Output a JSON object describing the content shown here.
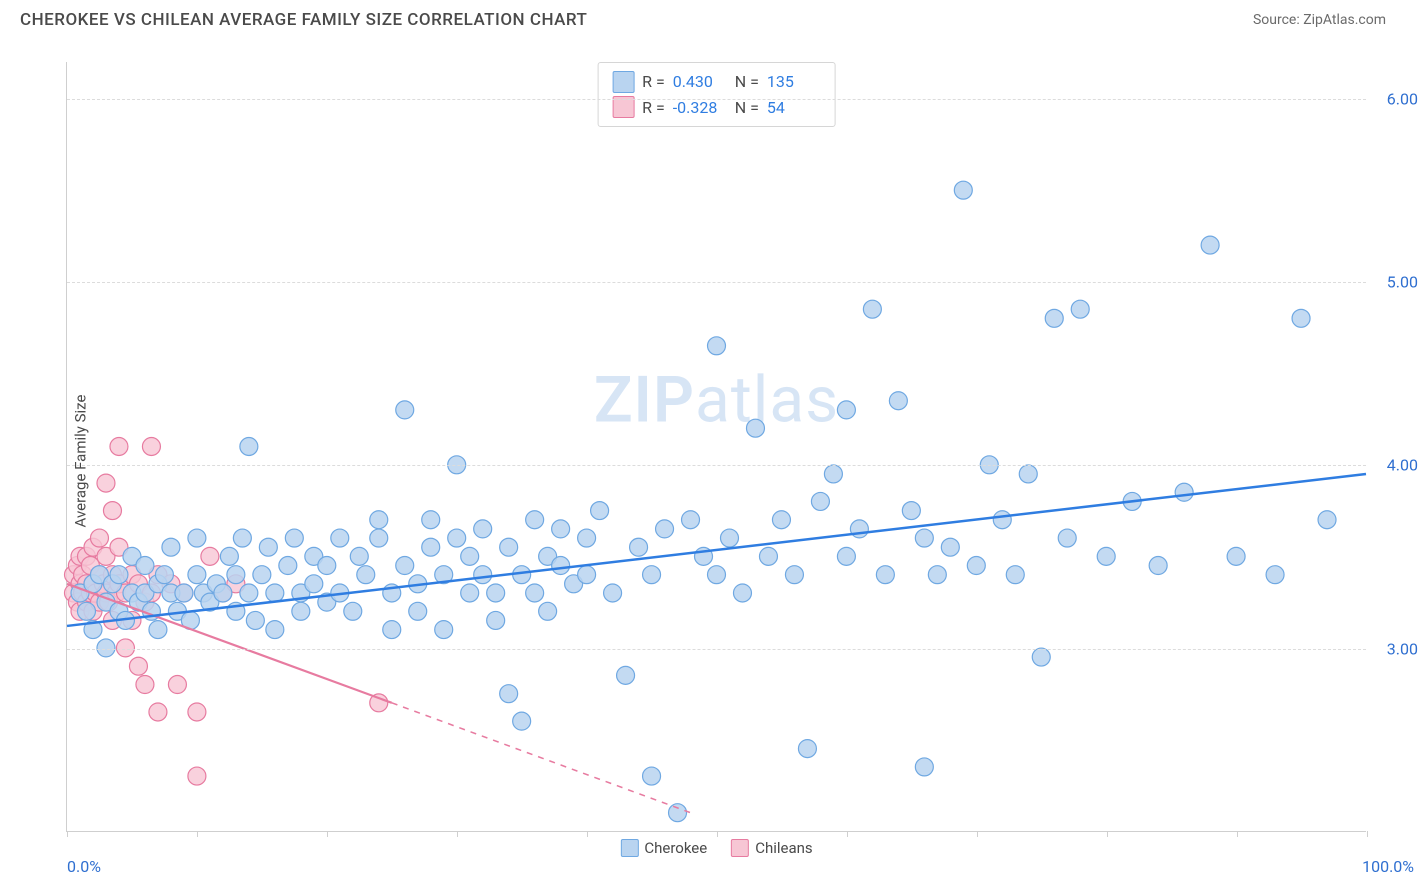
{
  "header": {
    "title": "CHEROKEE VS CHILEAN AVERAGE FAMILY SIZE CORRELATION CHART",
    "source": "Source: ZipAtlas.com"
  },
  "chart": {
    "type": "scatter",
    "y_axis_label": "Average Family Size",
    "background_color": "#ffffff",
    "grid_color": "#dcdcdc",
    "axis_color": "#cfcfcf",
    "watermark_text_bold": "ZIP",
    "watermark_text_rest": "atlas",
    "watermark_color": "#d7e5f5",
    "x_axis": {
      "min": 0,
      "max": 100,
      "left_label": "0.0%",
      "right_label": "100.0%",
      "label_color": "#2f6fd0",
      "tick_positions_pct": [
        0,
        10,
        20,
        30,
        40,
        50,
        60,
        70,
        80,
        90,
        100
      ]
    },
    "y_axis": {
      "min": 2.0,
      "max": 6.2,
      "ticks": [
        3.0,
        4.0,
        5.0,
        6.0
      ],
      "tick_labels": [
        "3.00",
        "4.00",
        "5.00",
        "6.00"
      ],
      "label_color": "#2f6fd0"
    },
    "stats_box": {
      "rows": [
        {
          "swatch": "blue",
          "r_label": "R =",
          "r_value": "0.430",
          "n_label": "N =",
          "n_value": "135"
        },
        {
          "swatch": "pink",
          "r_label": "R =",
          "r_value": "-0.328",
          "n_label": "N =",
          "n_value": "54"
        }
      ],
      "value_color": "#2f7de1"
    },
    "legend_bottom": [
      {
        "swatch": "blue",
        "label": "Cherokee"
      },
      {
        "swatch": "pink",
        "label": "Chileans"
      }
    ],
    "series": {
      "cherokee": {
        "marker_fill": "#b9d4f0",
        "marker_stroke": "#6fa8e2",
        "marker_radius": 9,
        "marker_opacity": 0.85,
        "line_color": "#2f7de1",
        "line_width": 2.5,
        "trend_line": {
          "x1": 0,
          "y1": 3.12,
          "x2": 100,
          "y2": 3.95
        },
        "points": [
          [
            1,
            3.3
          ],
          [
            1.5,
            3.2
          ],
          [
            2,
            3.35
          ],
          [
            2,
            3.1
          ],
          [
            2.5,
            3.4
          ],
          [
            3,
            3.25
          ],
          [
            3,
            3.0
          ],
          [
            3.5,
            3.35
          ],
          [
            4,
            3.2
          ],
          [
            4,
            3.4
          ],
          [
            4.5,
            3.15
          ],
          [
            5,
            3.3
          ],
          [
            5,
            3.5
          ],
          [
            5.5,
            3.25
          ],
          [
            6,
            3.3
          ],
          [
            6,
            3.45
          ],
          [
            6.5,
            3.2
          ],
          [
            7,
            3.35
          ],
          [
            7,
            3.1
          ],
          [
            7.5,
            3.4
          ],
          [
            8,
            3.3
          ],
          [
            8,
            3.55
          ],
          [
            8.5,
            3.2
          ],
          [
            9,
            3.3
          ],
          [
            9.5,
            3.15
          ],
          [
            10,
            3.4
          ],
          [
            10.5,
            3.3
          ],
          [
            10,
            3.6
          ],
          [
            11,
            3.25
          ],
          [
            11.5,
            3.35
          ],
          [
            12,
            3.3
          ],
          [
            12.5,
            3.5
          ],
          [
            13,
            3.2
          ],
          [
            13,
            3.4
          ],
          [
            13.5,
            3.6
          ],
          [
            14,
            4.1
          ],
          [
            14,
            3.3
          ],
          [
            14.5,
            3.15
          ],
          [
            15,
            3.4
          ],
          [
            15.5,
            3.55
          ],
          [
            16,
            3.3
          ],
          [
            16,
            3.1
          ],
          [
            17,
            3.45
          ],
          [
            17.5,
            3.6
          ],
          [
            18,
            3.3
          ],
          [
            18,
            3.2
          ],
          [
            19,
            3.5
          ],
          [
            19,
            3.35
          ],
          [
            20,
            3.25
          ],
          [
            20,
            3.45
          ],
          [
            21,
            3.6
          ],
          [
            21,
            3.3
          ],
          [
            22,
            3.2
          ],
          [
            22.5,
            3.5
          ],
          [
            23,
            3.4
          ],
          [
            24,
            3.6
          ],
          [
            24,
            3.7
          ],
          [
            25,
            3.3
          ],
          [
            25,
            3.1
          ],
          [
            26,
            3.45
          ],
          [
            26,
            4.3
          ],
          [
            27,
            3.35
          ],
          [
            27,
            3.2
          ],
          [
            28,
            3.55
          ],
          [
            28,
            3.7
          ],
          [
            29,
            3.4
          ],
          [
            29,
            3.1
          ],
          [
            30,
            3.6
          ],
          [
            30,
            4.0
          ],
          [
            31,
            3.3
          ],
          [
            31,
            3.5
          ],
          [
            32,
            3.4
          ],
          [
            32,
            3.65
          ],
          [
            33,
            3.3
          ],
          [
            33,
            3.15
          ],
          [
            34,
            3.55
          ],
          [
            34,
            2.75
          ],
          [
            35,
            3.4
          ],
          [
            35,
            2.6
          ],
          [
            36,
            3.7
          ],
          [
            36,
            3.3
          ],
          [
            37,
            3.5
          ],
          [
            37,
            3.2
          ],
          [
            38,
            3.45
          ],
          [
            38,
            3.65
          ],
          [
            39,
            3.35
          ],
          [
            40,
            3.6
          ],
          [
            40,
            3.4
          ],
          [
            41,
            3.75
          ],
          [
            42,
            3.3
          ],
          [
            43,
            2.85
          ],
          [
            44,
            3.55
          ],
          [
            45,
            3.4
          ],
          [
            45,
            2.3
          ],
          [
            46,
            3.65
          ],
          [
            47,
            2.1
          ],
          [
            48,
            3.7
          ],
          [
            49,
            3.5
          ],
          [
            50,
            3.4
          ],
          [
            50,
            4.65
          ],
          [
            51,
            3.6
          ],
          [
            52,
            3.3
          ],
          [
            53,
            4.2
          ],
          [
            54,
            3.5
          ],
          [
            55,
            3.7
          ],
          [
            56,
            3.4
          ],
          [
            57,
            2.45
          ],
          [
            58,
            3.8
          ],
          [
            59,
            3.95
          ],
          [
            60,
            3.5
          ],
          [
            60,
            4.3
          ],
          [
            61,
            3.65
          ],
          [
            62,
            4.85
          ],
          [
            63,
            3.4
          ],
          [
            64,
            4.35
          ],
          [
            65,
            3.75
          ],
          [
            66,
            3.6
          ],
          [
            66,
            2.35
          ],
          [
            67,
            3.4
          ],
          [
            68,
            3.55
          ],
          [
            69,
            5.5
          ],
          [
            70,
            3.45
          ],
          [
            71,
            4.0
          ],
          [
            72,
            3.7
          ],
          [
            73,
            3.4
          ],
          [
            74,
            3.95
          ],
          [
            75,
            2.95
          ],
          [
            76,
            4.8
          ],
          [
            77,
            3.6
          ],
          [
            78,
            4.85
          ],
          [
            80,
            3.5
          ],
          [
            82,
            3.8
          ],
          [
            84,
            3.45
          ],
          [
            86,
            3.85
          ],
          [
            88,
            5.2
          ],
          [
            90,
            3.5
          ],
          [
            93,
            3.4
          ],
          [
            95,
            4.8
          ],
          [
            97,
            3.7
          ]
        ]
      },
      "chileans": {
        "marker_fill": "#f7c6d4",
        "marker_stroke": "#e77ba0",
        "marker_radius": 9,
        "marker_opacity": 0.8,
        "line_color": "#e77ba0",
        "line_width": 2.2,
        "trend_line_solid": {
          "x1": 0,
          "y1": 3.35,
          "x2": 25,
          "y2": 2.7
        },
        "trend_line_dash": {
          "x1": 25,
          "y1": 2.7,
          "x2": 48,
          "y2": 2.1
        },
        "points": [
          [
            0.5,
            3.3
          ],
          [
            0.5,
            3.4
          ],
          [
            0.8,
            3.25
          ],
          [
            0.8,
            3.45
          ],
          [
            1,
            3.35
          ],
          [
            1,
            3.2
          ],
          [
            1,
            3.5
          ],
          [
            1.2,
            3.3
          ],
          [
            1.2,
            3.4
          ],
          [
            1.5,
            3.35
          ],
          [
            1.5,
            3.25
          ],
          [
            1.5,
            3.5
          ],
          [
            1.8,
            3.3
          ],
          [
            1.8,
            3.45
          ],
          [
            2,
            3.35
          ],
          [
            2,
            3.2
          ],
          [
            2,
            3.55
          ],
          [
            2.2,
            3.3
          ],
          [
            2.5,
            3.4
          ],
          [
            2.5,
            3.25
          ],
          [
            2.5,
            3.6
          ],
          [
            2.8,
            3.35
          ],
          [
            3,
            3.3
          ],
          [
            3,
            3.5
          ],
          [
            3,
            3.9
          ],
          [
            3.2,
            3.25
          ],
          [
            3.5,
            3.4
          ],
          [
            3.5,
            3.15
          ],
          [
            3.5,
            3.75
          ],
          [
            3.8,
            3.3
          ],
          [
            4,
            3.35
          ],
          [
            4,
            3.55
          ],
          [
            4,
            4.1
          ],
          [
            4.5,
            3.3
          ],
          [
            4.5,
            3.0
          ],
          [
            5,
            3.4
          ],
          [
            5,
            3.15
          ],
          [
            5.5,
            3.35
          ],
          [
            5.5,
            2.9
          ],
          [
            6,
            3.25
          ],
          [
            6,
            2.8
          ],
          [
            6.5,
            4.1
          ],
          [
            6.5,
            3.3
          ],
          [
            7,
            3.4
          ],
          [
            7,
            2.65
          ],
          [
            8,
            3.35
          ],
          [
            8.5,
            2.8
          ],
          [
            9,
            3.3
          ],
          [
            10,
            2.65
          ],
          [
            10,
            2.3
          ],
          [
            11,
            3.5
          ],
          [
            12,
            3.3
          ],
          [
            13,
            3.35
          ],
          [
            24,
            2.7
          ]
        ]
      }
    }
  }
}
